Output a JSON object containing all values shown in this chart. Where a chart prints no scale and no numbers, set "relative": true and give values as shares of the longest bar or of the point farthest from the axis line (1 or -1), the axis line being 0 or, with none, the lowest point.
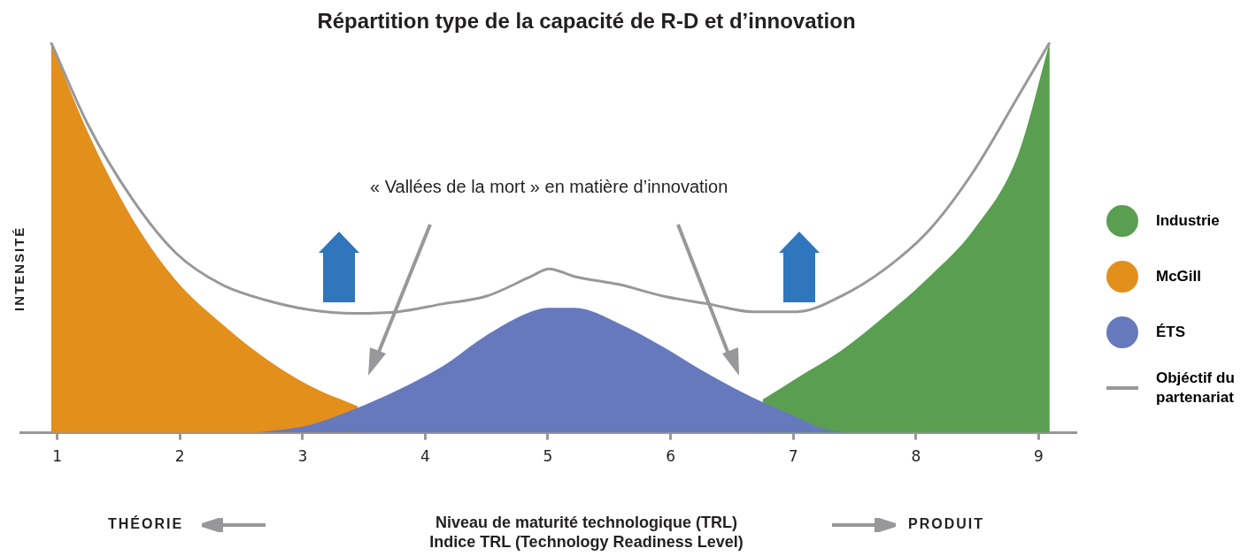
{
  "chart_data": {
    "type": "area",
    "title": "Répartition type de la capacité de R-D et d’innovation",
    "xlabel": "Niveau de maturité technologique (TRL)\nIndice TRL (Technology Readiness Level)",
    "ylabel": "INTENSITÉ",
    "relative": true,
    "xlim": [
      0.7,
      9.3
    ],
    "xticks": [
      1,
      2,
      3,
      4,
      5,
      6,
      7,
      8,
      9
    ],
    "grid": false,
    "legend": "right",
    "annotations": [
      "« Vallées de la mort » en matière d’innovation",
      "THÉORIE",
      "PRODUIT"
    ],
    "series": [
      {
        "name": "Industrie",
        "color": "#5a9e52",
        "x": [
          6.75,
          7.03,
          7.39,
          7.75,
          8.11,
          8.47,
          8.83,
          9.09
        ],
        "values": [
          0.085,
          0.14,
          0.21,
          0.3,
          0.4,
          0.52,
          0.71,
          1.0
        ]
      },
      {
        "name": "McGill",
        "color": "#e38f1c",
        "x": [
          0.95,
          1.25,
          1.61,
          1.97,
          2.34,
          2.7,
          3.06,
          3.45
        ],
        "values": [
          1.0,
          0.77,
          0.55,
          0.39,
          0.28,
          0.19,
          0.12,
          0.068
        ]
      },
      {
        "name": "ÉTS",
        "color": "#6679bd",
        "x": [
          2.62,
          3.06,
          3.42,
          3.78,
          4.14,
          4.5,
          4.86,
          5.01,
          5.22,
          5.58,
          5.94,
          6.31,
          6.67,
          7.03,
          7.25,
          7.46
        ],
        "values": [
          0,
          0.02,
          0.06,
          0.11,
          0.17,
          0.25,
          0.31,
          0.32,
          0.32,
          0.28,
          0.22,
          0.15,
          0.09,
          0.04,
          0.01,
          0
        ]
      },
      {
        "name": "Objéctif du partenariat",
        "type": "line",
        "color": "#98989b",
        "x": [
          0.95,
          1.25,
          1.61,
          1.97,
          2.34,
          2.7,
          3.06,
          3.42,
          3.78,
          4.14,
          4.5,
          4.86,
          5.01,
          5.22,
          5.58,
          5.94,
          6.31,
          6.67,
          7.03,
          7.39,
          7.75,
          8.11,
          8.47,
          8.83,
          9.09
        ],
        "values": [
          1.0,
          0.79,
          0.6,
          0.46,
          0.38,
          0.34,
          0.315,
          0.306,
          0.31,
          0.33,
          0.35,
          0.4,
          0.42,
          0.4,
          0.38,
          0.35,
          0.33,
          0.31,
          0.31,
          0.35,
          0.42,
          0.52,
          0.67,
          0.86,
          1.0
        ]
      }
    ]
  }
}
